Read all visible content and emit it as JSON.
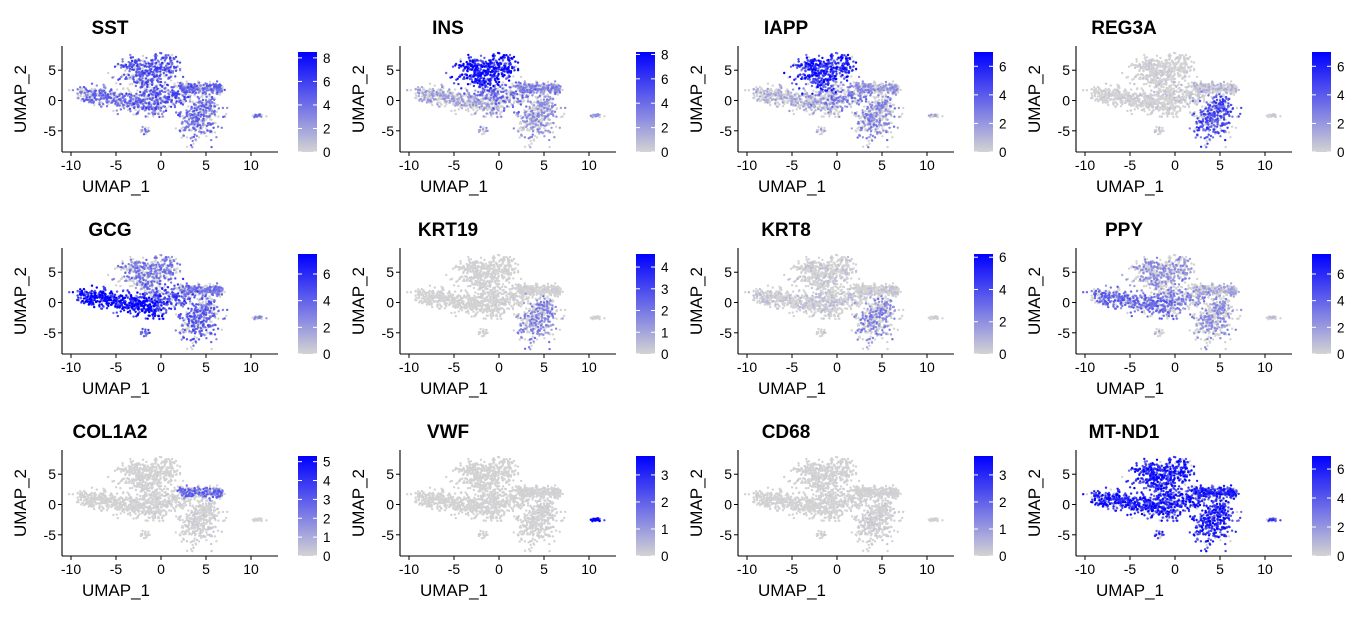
{
  "figure": {
    "x_label": "UMAP_1",
    "y_label": "UMAP_2",
    "x_ticks": [
      -10,
      -5,
      0,
      5,
      10
    ],
    "y_ticks": [
      -5,
      0,
      5
    ],
    "xlim": [
      -11,
      13
    ],
    "ylim": [
      -8.5,
      9
    ],
    "color_low": "#d3d3d3",
    "color_high": "#0000ff"
  },
  "chart_data": [
    {
      "type": "scatter",
      "title": "SST",
      "xlabel": "UMAP_1",
      "ylabel": "UMAP_2",
      "colorbar_ticks": [
        0,
        2,
        4,
        6,
        8
      ],
      "colorbar_max": 8.5,
      "expression_pattern": "moderate, broadly expressed"
    },
    {
      "type": "scatter",
      "title": "INS",
      "xlabel": "UMAP_1",
      "ylabel": "UMAP_2",
      "colorbar_ticks": [
        0,
        2,
        4,
        6,
        8
      ],
      "colorbar_max": 8.2,
      "expression_pattern": "high in upper cluster (beta cells)"
    },
    {
      "type": "scatter",
      "title": "IAPP",
      "xlabel": "UMAP_1",
      "ylabel": "UMAP_2",
      "colorbar_ticks": [
        0,
        2,
        4,
        6
      ],
      "colorbar_max": 7.0,
      "expression_pattern": "high in upper cluster"
    },
    {
      "type": "scatter",
      "title": "REG3A",
      "xlabel": "UMAP_1",
      "ylabel": "UMAP_2",
      "colorbar_ticks": [
        0,
        2,
        4,
        6
      ],
      "colorbar_max": 7.0,
      "expression_pattern": "right-lower cluster"
    },
    {
      "type": "scatter",
      "title": "GCG",
      "xlabel": "UMAP_1",
      "ylabel": "UMAP_2",
      "colorbar_ticks": [
        0,
        2,
        4,
        6
      ],
      "colorbar_max": 7.5,
      "expression_pattern": "high in left cluster (alpha cells)"
    },
    {
      "type": "scatter",
      "title": "KRT19",
      "xlabel": "UMAP_1",
      "ylabel": "UMAP_2",
      "colorbar_ticks": [
        0,
        1,
        2,
        3,
        4
      ],
      "colorbar_max": 4.6,
      "expression_pattern": "sparse, right-lower cluster"
    },
    {
      "type": "scatter",
      "title": "KRT8",
      "xlabel": "UMAP_1",
      "ylabel": "UMAP_2",
      "colorbar_ticks": [
        0,
        2,
        4,
        6
      ],
      "colorbar_max": 6.2,
      "expression_pattern": "sparse, right-lower cluster"
    },
    {
      "type": "scatter",
      "title": "PPY",
      "xlabel": "UMAP_1",
      "ylabel": "UMAP_2",
      "colorbar_ticks": [
        0,
        2,
        4,
        6
      ],
      "colorbar_max": 7.5,
      "expression_pattern": "left-central region"
    },
    {
      "type": "scatter",
      "title": "COL1A2",
      "xlabel": "UMAP_1",
      "ylabel": "UMAP_2",
      "colorbar_ticks": [
        0,
        1,
        2,
        3,
        4,
        5
      ],
      "colorbar_max": 5.3,
      "expression_pattern": "right arm near (6, 2)"
    },
    {
      "type": "scatter",
      "title": "VWF",
      "xlabel": "UMAP_1",
      "ylabel": "UMAP_2",
      "colorbar_ticks": [
        0,
        1,
        2,
        3
      ],
      "colorbar_max": 3.7,
      "expression_pattern": "isolated cluster near (10.5, -2.5)"
    },
    {
      "type": "scatter",
      "title": "CD68",
      "xlabel": "UMAP_1",
      "ylabel": "UMAP_2",
      "colorbar_ticks": [
        0,
        1,
        2,
        3
      ],
      "colorbar_max": 3.7,
      "expression_pattern": "very sparse"
    },
    {
      "type": "scatter",
      "title": "MT-ND1",
      "xlabel": "UMAP_1",
      "ylabel": "UMAP_2",
      "colorbar_ticks": [
        0,
        2,
        4,
        6
      ],
      "colorbar_max": 6.9,
      "expression_pattern": "high everywhere"
    }
  ]
}
